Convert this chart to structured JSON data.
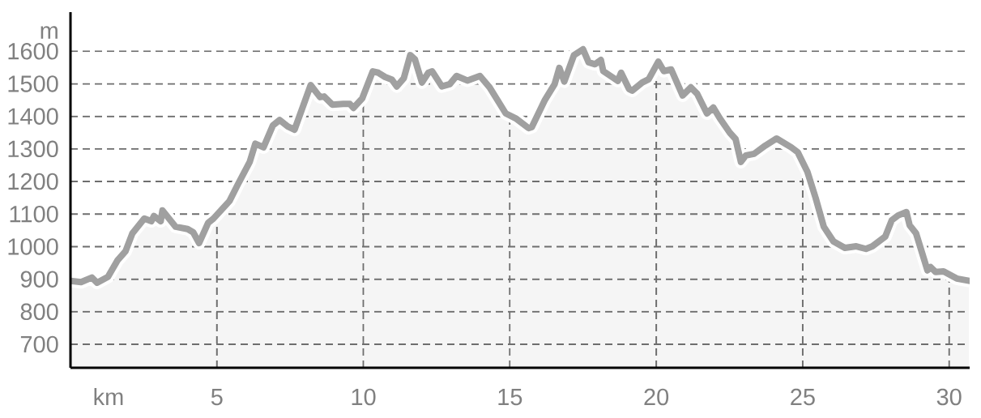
{
  "chart_data": {
    "type": "area",
    "xlabel": "km",
    "ylabel": "m",
    "x": [
      0,
      0.36,
      0.73,
      0.91,
      1.28,
      1.6,
      1.88,
      2.11,
      2.52,
      2.76,
      2.85,
      3.08,
      3.14,
      3.59,
      4.0,
      4.19,
      4.39,
      4.7,
      4.88,
      5.43,
      5.71,
      6.12,
      6.31,
      6.59,
      6.91,
      7.14,
      7.42,
      7.65,
      8.2,
      8.52,
      8.66,
      8.94,
      9.31,
      9.54,
      9.66,
      9.96,
      10.32,
      10.51,
      10.74,
      10.97,
      11.14,
      11.38,
      11.6,
      11.76,
      12.0,
      12.22,
      12.35,
      12.68,
      12.95,
      13.18,
      13.55,
      13.98,
      14.31,
      14.86,
      15.2,
      15.64,
      15.75,
      16.19,
      16.53,
      16.69,
      16.86,
      17.19,
      17.5,
      17.69,
      17.91,
      18.11,
      18.19,
      18.52,
      18.69,
      18.8,
      19.07,
      19.18,
      19.52,
      19.74,
      20.07,
      20.26,
      20.51,
      20.9,
      21.18,
      21.4,
      21.73,
      21.95,
      22.17,
      22.51,
      22.71,
      22.89,
      23.06,
      23.34,
      23.72,
      24.11,
      24.61,
      24.83,
      25.16,
      25.44,
      25.72,
      26.05,
      26.44,
      26.83,
      27.16,
      27.38,
      27.82,
      28.04,
      28.26,
      28.54,
      28.65,
      28.87,
      29.26,
      29.37,
      29.54,
      29.81,
      30.26,
      30.68
    ],
    "series": [
      {
        "color": "#a0a0a0",
        "values": [
          895,
          891,
          905,
          889,
          907,
          957,
          986,
          1040,
          1086,
          1078,
          1094,
          1078,
          1111,
          1061,
          1054,
          1044,
          1011,
          1073,
          1086,
          1140,
          1190,
          1260,
          1316,
          1305,
          1372,
          1389,
          1369,
          1359,
          1496,
          1459,
          1461,
          1436,
          1438,
          1438,
          1426,
          1455,
          1538,
          1534,
          1521,
          1513,
          1492,
          1517,
          1588,
          1575,
          1504,
          1534,
          1538,
          1492,
          1499,
          1524,
          1510,
          1524,
          1489,
          1409,
          1394,
          1364,
          1367,
          1449,
          1499,
          1549,
          1507,
          1588,
          1606,
          1566,
          1560,
          1573,
          1539,
          1519,
          1509,
          1534,
          1484,
          1479,
          1504,
          1514,
          1568,
          1539,
          1544,
          1464,
          1489,
          1469,
          1409,
          1427,
          1394,
          1350,
          1330,
          1260,
          1280,
          1285,
          1310,
          1332,
          1305,
          1290,
          1230,
          1150,
          1061,
          1016,
          996,
          1001,
          993,
          1001,
          1031,
          1081,
          1096,
          1106,
          1066,
          1041,
          927,
          937,
          922,
          924,
          902,
          895
        ]
      }
    ],
    "xlim": [
      0,
      30.7
    ],
    "ylim": [
      628,
      1720
    ],
    "xticks": [
      5,
      10,
      15,
      20,
      25,
      30
    ],
    "yticks": [
      700,
      800,
      900,
      1000,
      1100,
      1200,
      1300,
      1400,
      1500,
      1600
    ],
    "grid": true
  }
}
